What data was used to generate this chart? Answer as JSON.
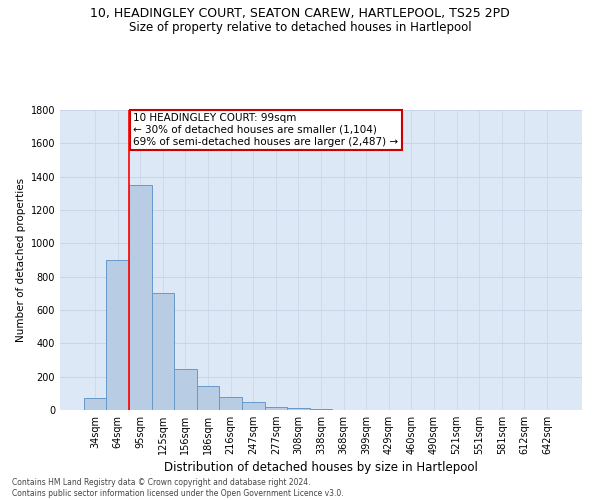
{
  "title": "10, HEADINGLEY COURT, SEATON CAREW, HARTLEPOOL, TS25 2PD",
  "subtitle": "Size of property relative to detached houses in Hartlepool",
  "xlabel": "Distribution of detached houses by size in Hartlepool",
  "ylabel": "Number of detached properties",
  "categories": [
    "34sqm",
    "64sqm",
    "95sqm",
    "125sqm",
    "156sqm",
    "186sqm",
    "216sqm",
    "247sqm",
    "277sqm",
    "308sqm",
    "338sqm",
    "368sqm",
    "399sqm",
    "429sqm",
    "460sqm",
    "490sqm",
    "521sqm",
    "551sqm",
    "581sqm",
    "612sqm",
    "642sqm"
  ],
  "values": [
    75,
    900,
    1350,
    700,
    245,
    145,
    80,
    50,
    20,
    10,
    5,
    3,
    3,
    2,
    2,
    1,
    1,
    1,
    1,
    1,
    1
  ],
  "bar_color": "#b8cce4",
  "bar_edge_color": "#6699cc",
  "redline_x": 1.5,
  "annotation_text": "10 HEADINGLEY COURT: 99sqm\n← 30% of detached houses are smaller (1,104)\n69% of semi-detached houses are larger (2,487) →",
  "annotation_box_color": "#cc0000",
  "ylim": [
    0,
    1800
  ],
  "yticks": [
    0,
    200,
    400,
    600,
    800,
    1000,
    1200,
    1400,
    1600,
    1800
  ],
  "grid_color": "#c8d4e8",
  "bg_color": "#dce8f5",
  "footer": "Contains HM Land Registry data © Crown copyright and database right 2024.\nContains public sector information licensed under the Open Government Licence v3.0.",
  "title_fontsize": 9,
  "subtitle_fontsize": 8.5,
  "xlabel_fontsize": 8.5,
  "ylabel_fontsize": 7.5,
  "tick_fontsize": 7,
  "annot_fontsize": 7.5
}
